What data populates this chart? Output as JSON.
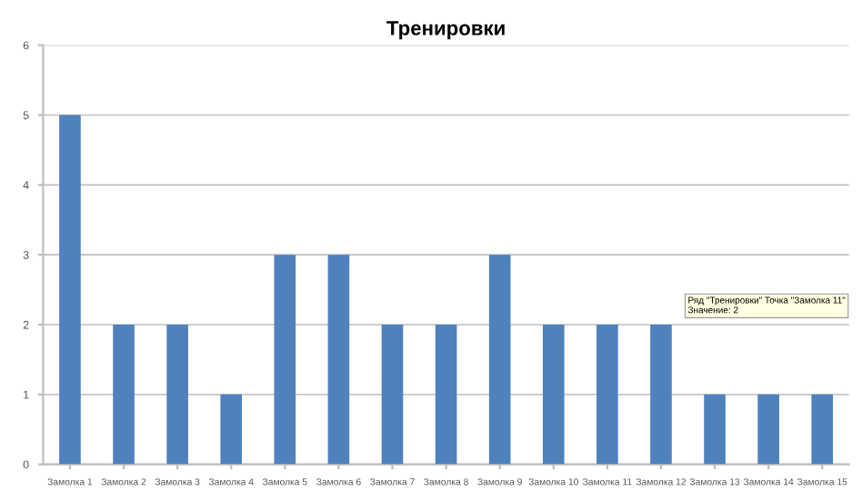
{
  "chart_data": {
    "type": "bar",
    "title": "Тренировки",
    "categories": [
      "Замолка 1",
      "Замолка 2",
      "Замолка 3",
      "Замолка 4",
      "Замолка 5",
      "Замолка 6",
      "Замолка 7",
      "Замолка 8",
      "Замолка 9",
      "Замолка 10",
      "Замолка 11",
      "Замолка 12",
      "Замолка 13",
      "Замолка 14",
      "Замолка 15"
    ],
    "values": [
      5,
      2,
      2,
      1,
      3,
      3,
      2,
      2,
      3,
      2,
      2,
      2,
      1,
      1,
      1
    ],
    "color": "#4f81bd",
    "ylim": [
      0,
      6
    ],
    "yticks": [
      0,
      1,
      2,
      3,
      4,
      5,
      6
    ],
    "grid": "y",
    "annotations": [
      "Ряд \"Тренировки\" Точка \"Замолка 11\"\nЗначение: 2"
    ]
  }
}
